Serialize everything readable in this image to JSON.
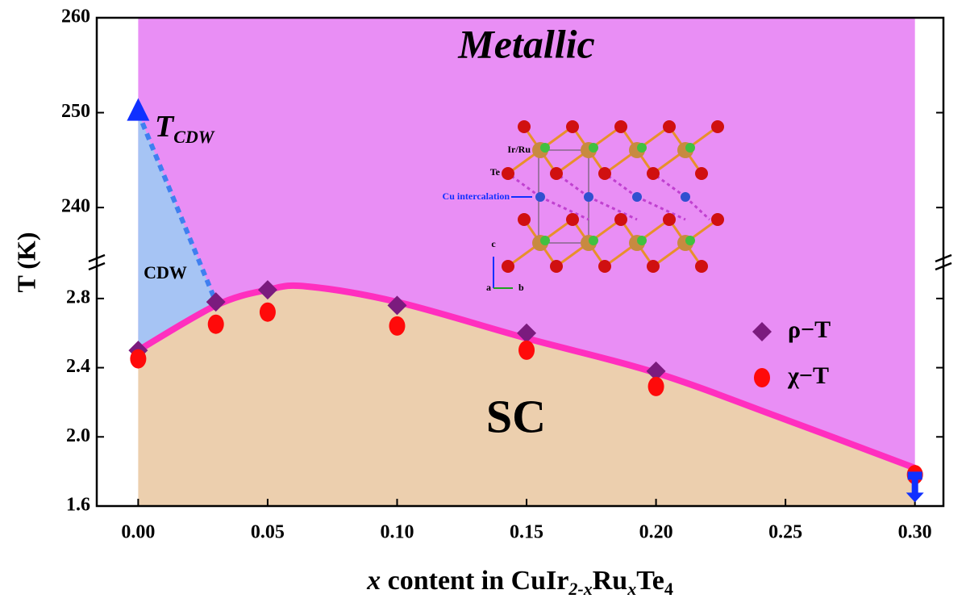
{
  "chart_data": {
    "type": "scatter",
    "title": "Metallic",
    "xlabel": [
      "x",
      " content in CuIr",
      "2-x",
      "Ru",
      "x",
      "Te",
      "4"
    ],
    "ylabel": "T (K)",
    "xlim": [
      -0.016,
      0.311
    ],
    "xticks": [
      {
        "value": 0,
        "label": "0.00"
      },
      {
        "value": 0.05,
        "label": "0.05"
      },
      {
        "value": 0.1,
        "label": "0.10"
      },
      {
        "value": 0.15,
        "label": "0.15"
      },
      {
        "value": 0.2,
        "label": "0.20"
      },
      {
        "value": 0.25,
        "label": "0.25"
      },
      {
        "value": 0.3,
        "label": "0.30"
      }
    ],
    "ylim": [
      1.6,
      3.0
    ],
    "yticks": [
      1.6,
      {
        "value": 2,
        "label": "2.0"
      },
      2.4,
      2.8
    ],
    "y2lim": [
      234.4,
      260
    ],
    "y2ticks": [
      240,
      250,
      260
    ],
    "legend": "right",
    "series": [
      {
        "name": "ρ−T",
        "color": "#7b1b7e",
        "marker": "diamond",
        "x": [
          0,
          0.03,
          0.05,
          0.1,
          0.15,
          0.2
        ],
        "values": [
          2.5,
          2.78,
          2.85,
          2.76,
          2.6,
          2.38
        ]
      },
      {
        "name": "χ−T",
        "color": "#ff0a0a",
        "marker": "circle",
        "x": [
          0,
          0.03,
          0.05,
          0.1,
          0.15,
          0.2,
          0.3
        ],
        "values": [
          2.47,
          2.67,
          2.74,
          2.66,
          2.52,
          2.31,
          1.8
        ]
      }
    ],
    "tcdw": {
      "label": [
        "T",
        "CDW"
      ],
      "x": 0,
      "value": 250,
      "axis": "y2",
      "color": "#1030ff"
    },
    "upper_limit": {
      "x": 0.3,
      "value": 1.78,
      "color": "#1030ff"
    },
    "boundary": {
      "color": "#ff2fbf",
      "x": [
        0,
        0.03,
        0.05,
        0.065,
        0.1,
        0.15,
        0.2,
        0.25,
        0.3
      ],
      "values": [
        2.5,
        2.76,
        2.85,
        2.87,
        2.78,
        2.57,
        2.37,
        2.1,
        1.82
      ]
    },
    "regions": [
      {
        "label": "CDW",
        "color": "#a6c4f4"
      },
      {
        "label": "SC",
        "color": "#eccfae"
      },
      {
        "color": "#e98ef5"
      }
    ],
    "inset": {
      "labels": [
        "Ir/Ru",
        "Te",
        "Cu intercalation",
        "c",
        "b",
        "a"
      ]
    }
  }
}
